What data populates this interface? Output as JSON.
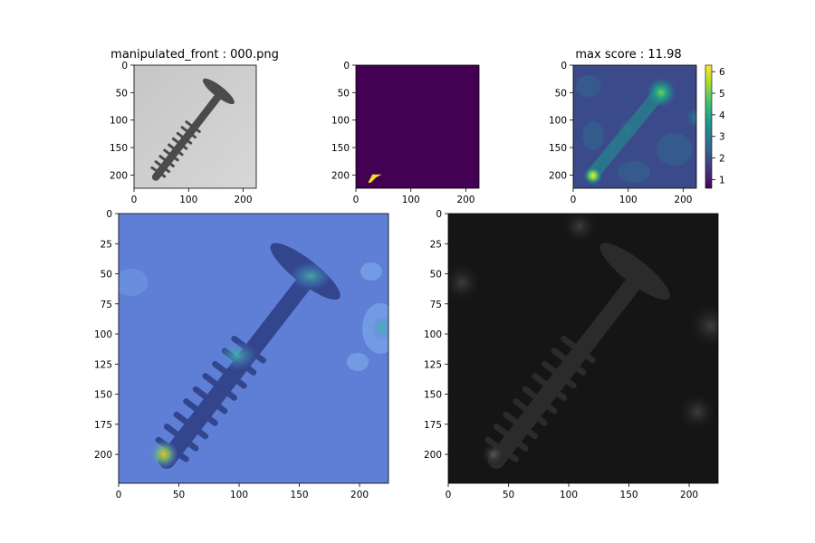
{
  "figure": {
    "titles": {
      "image": "manipulated_front : 000.png",
      "mask": "",
      "heatmap": "max score : 11.98"
    }
  },
  "colors": {
    "mask_background": "#440154",
    "mask_region": "#f0e024",
    "viridis": [
      "#440154",
      "#482878",
      "#3e4989",
      "#31688e",
      "#26828e",
      "#1f9e89",
      "#35b779",
      "#6ece58",
      "#b5de2b",
      "#fde725"
    ],
    "overlay_tint": "#3b5bd6"
  },
  "chart_data": [
    {
      "panel": "image",
      "type": "image",
      "title": "manipulated_front : 000.png",
      "xlim": [
        0,
        224
      ],
      "ylim": [
        224,
        0
      ],
      "xticks": [
        0,
        100,
        200
      ],
      "yticks": [
        0,
        50,
        100,
        150,
        200
      ],
      "content": "grayscale screw on light gray background"
    },
    {
      "panel": "mask",
      "type": "heatmap",
      "title": "",
      "xlim": [
        0,
        224
      ],
      "ylim": [
        224,
        0
      ],
      "xticks": [
        0,
        100,
        200
      ],
      "yticks": [
        0,
        50,
        100,
        150,
        200
      ],
      "mask_region_points": [
        [
          22,
          214
        ],
        [
          30,
          199
        ],
        [
          47,
          199
        ],
        [
          37,
          204
        ],
        [
          27,
          214
        ]
      ]
    },
    {
      "panel": "heatmap",
      "type": "heatmap",
      "title": "max score : 11.98",
      "colormap": "viridis",
      "xlim": [
        0,
        224
      ],
      "ylim": [
        224,
        0
      ],
      "xticks": [
        0,
        100,
        200
      ],
      "yticks": [
        0,
        50,
        100,
        150,
        200
      ],
      "colorbar_ticks": [
        1,
        2,
        3,
        4,
        5,
        6
      ],
      "colorbar_range": [
        0.6,
        6.3
      ],
      "hotspots": [
        {
          "x": 36,
          "y": 201,
          "value": 6.2
        },
        {
          "x": 160,
          "y": 50,
          "value": 4.8
        },
        {
          "x": 100,
          "y": 118,
          "value": 3.6
        },
        {
          "x": 224,
          "y": 95,
          "value": 3.2
        }
      ]
    },
    {
      "panel": "overlay",
      "type": "image",
      "title": "",
      "xlim": [
        0,
        224
      ],
      "ylim": [
        224,
        0
      ],
      "xticks": [
        0,
        50,
        100,
        150,
        200
      ],
      "yticks": [
        0,
        25,
        50,
        75,
        100,
        125,
        150,
        175,
        200
      ],
      "content": "screw image blended with anomaly heatmap"
    },
    {
      "panel": "masked",
      "type": "image",
      "title": "",
      "xlim": [
        0,
        224
      ],
      "ylim": [
        224,
        0
      ],
      "xticks": [
        0,
        50,
        100,
        150,
        200
      ],
      "yticks": [
        0,
        25,
        50,
        75,
        100,
        125,
        150,
        175,
        200
      ],
      "content": "dark screw image weighted by anomaly score"
    }
  ]
}
